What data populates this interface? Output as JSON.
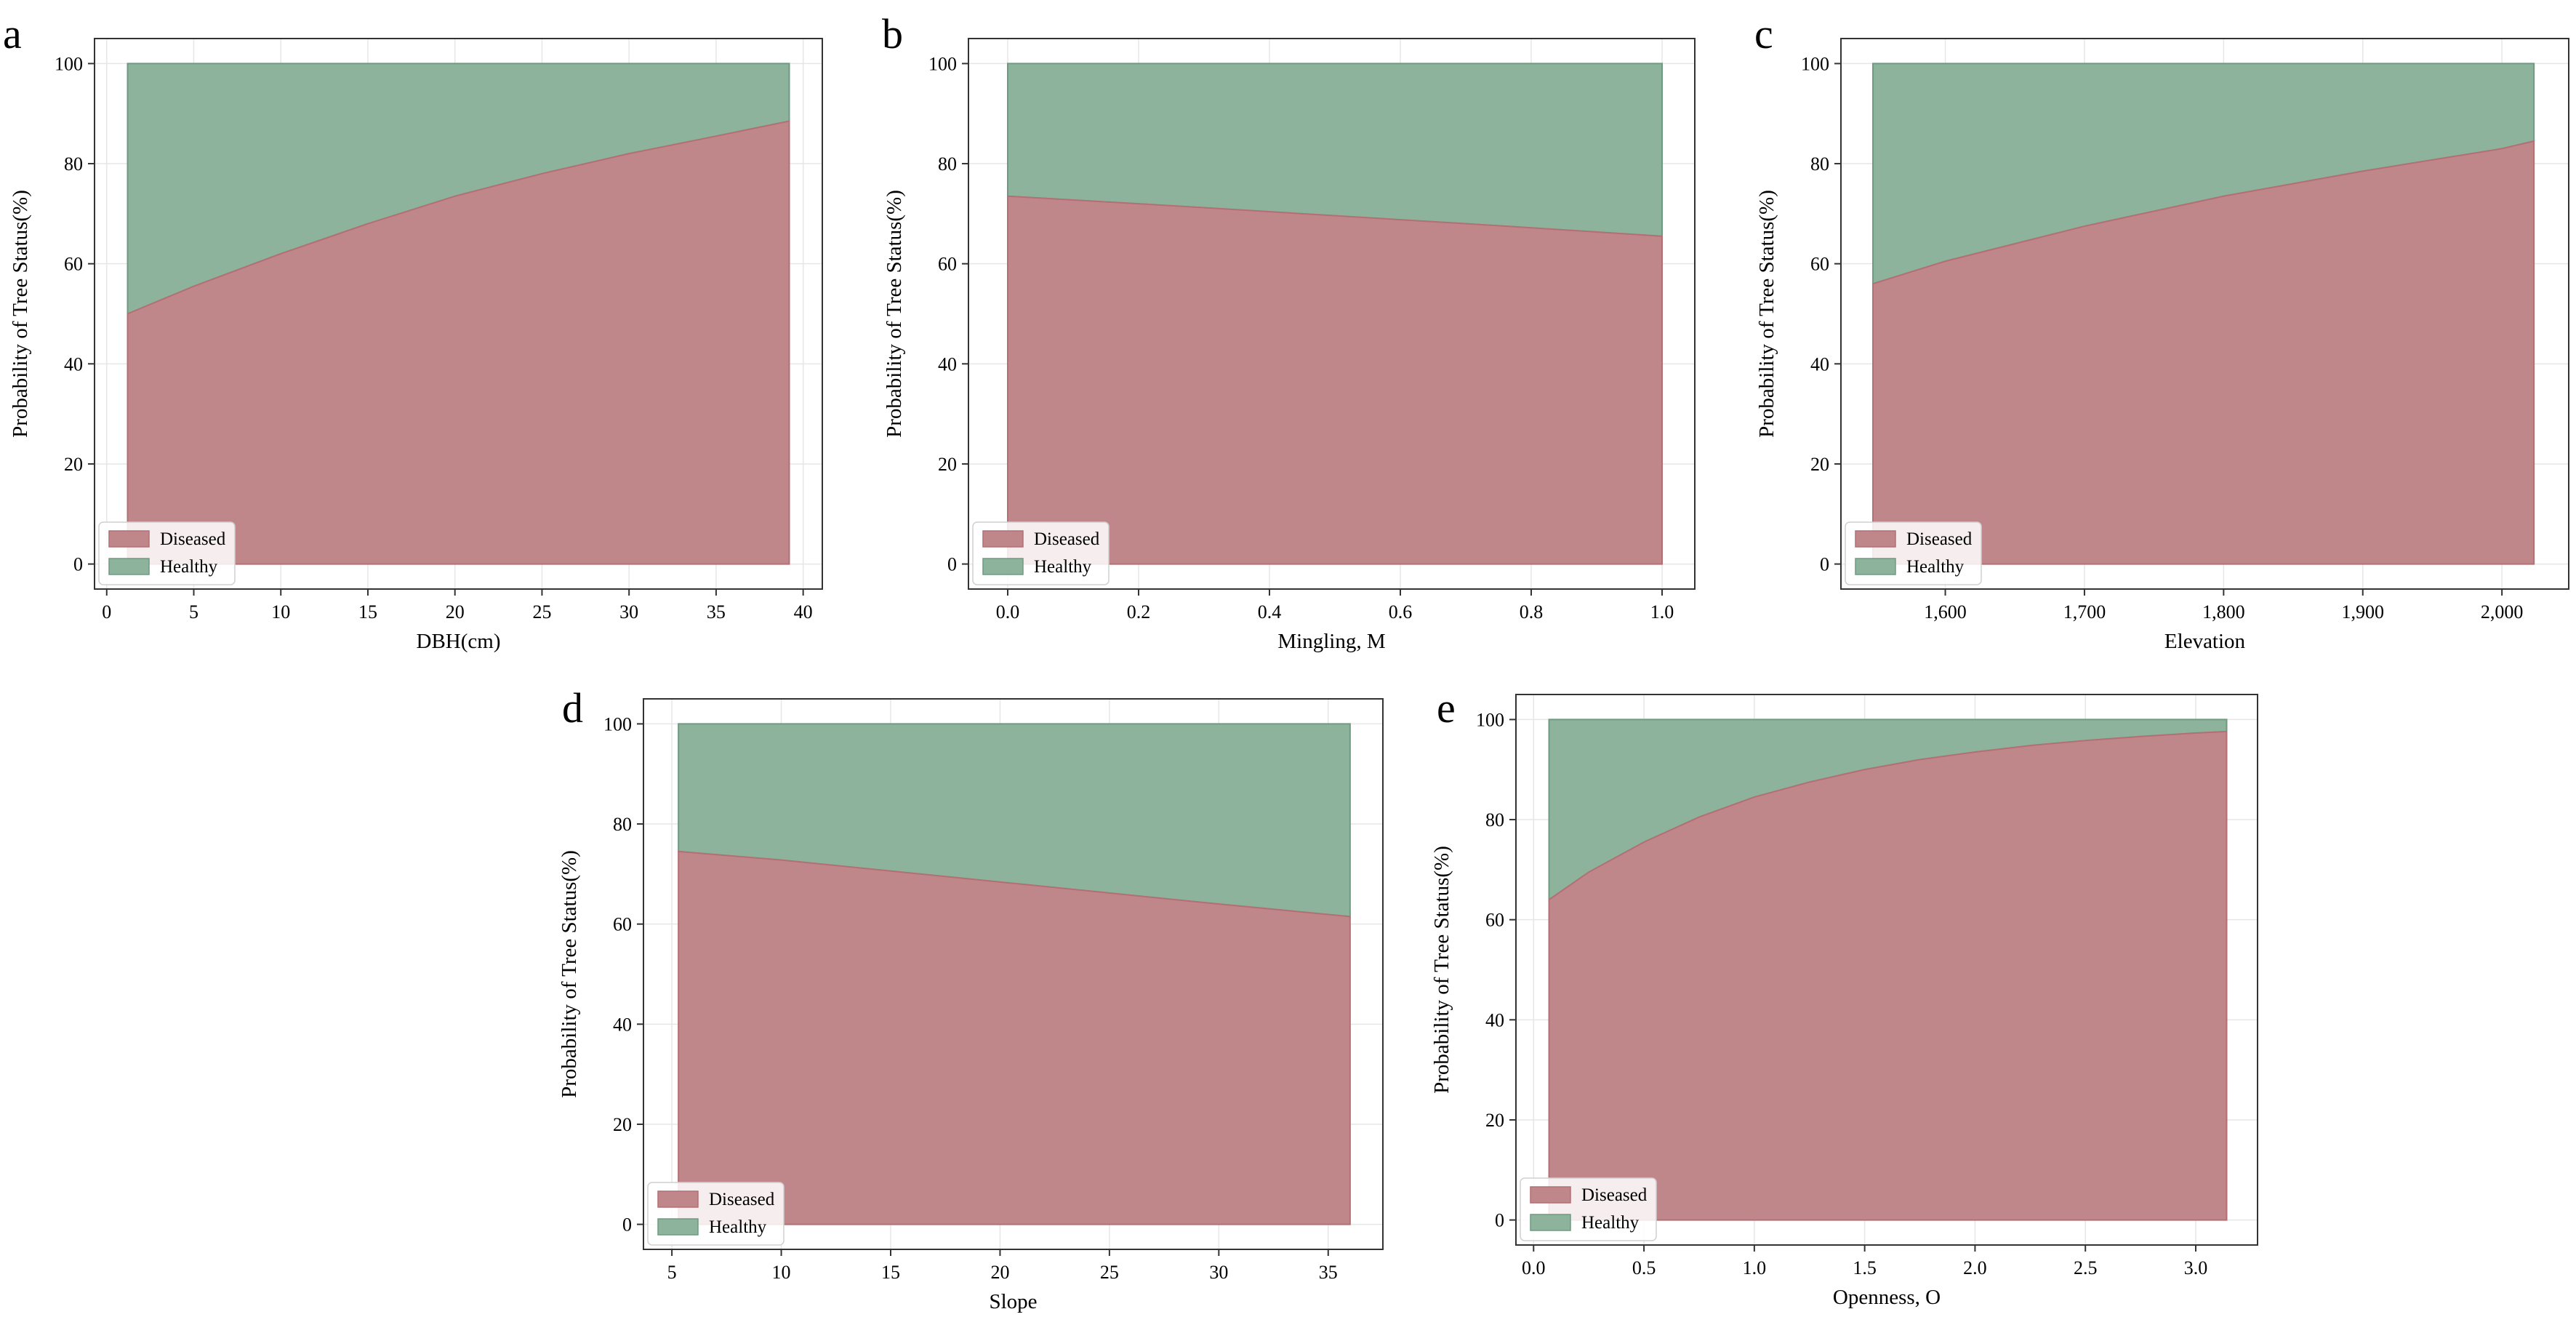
{
  "colors": {
    "diseased": "#c0878b",
    "diseased_edge": "#b46f74",
    "healthy": "#8eb39c",
    "healthy_edge": "#6e9a80",
    "grid": "#e6e6e6",
    "axis": "#333333"
  },
  "chart_data": [
    {
      "panel": "a",
      "type": "area",
      "title": "",
      "xlabel": "DBH(cm)",
      "ylabel": "Probability of Tree Status(%)",
      "xlim": [
        -0.7,
        41.1
      ],
      "ylim": [
        -5,
        105
      ],
      "xticks": [
        0,
        5,
        10,
        15,
        20,
        25,
        30,
        35,
        40
      ],
      "xtick_labels": [
        "0",
        "5",
        "10",
        "15",
        "20",
        "25",
        "30",
        "35",
        "40"
      ],
      "yticks": [
        0,
        20,
        40,
        60,
        80,
        100
      ],
      "ytick_labels": [
        "0",
        "20",
        "40",
        "60",
        "80",
        "100"
      ],
      "legend": [
        "Diseased",
        "Healthy"
      ],
      "legend_position": "lower-left",
      "series": [
        {
          "name": "Diseased",
          "x": [
            1.2,
            5,
            10,
            15,
            20,
            25,
            30,
            35,
            39.2
          ],
          "values": [
            50,
            55.5,
            62,
            68,
            73.5,
            78,
            82,
            85.5,
            88.5
          ]
        },
        {
          "name": "Healthy",
          "x": [
            1.2,
            5,
            10,
            15,
            20,
            25,
            30,
            35,
            39.2
          ],
          "values": [
            50,
            44.5,
            38,
            32,
            26.5,
            22,
            18,
            14.5,
            11.5
          ]
        }
      ]
    },
    {
      "panel": "b",
      "type": "area",
      "title": "",
      "xlabel": "Mingling, M",
      "ylabel": "Probability of Tree Status(%)",
      "xlim": [
        -0.06,
        1.05
      ],
      "ylim": [
        -5,
        105
      ],
      "xticks": [
        0,
        0.2,
        0.4,
        0.6,
        0.8,
        1.0
      ],
      "xtick_labels": [
        "0.0",
        "0.2",
        "0.4",
        "0.6",
        "0.8",
        "1.0"
      ],
      "yticks": [
        0,
        20,
        40,
        60,
        80,
        100
      ],
      "ytick_labels": [
        "0",
        "20",
        "40",
        "60",
        "80",
        "100"
      ],
      "legend": [
        "Diseased",
        "Healthy"
      ],
      "legend_position": "lower-left",
      "series": [
        {
          "name": "Diseased",
          "x": [
            0,
            0.25,
            0.5,
            0.75,
            1.0
          ],
          "values": [
            73.5,
            71.6,
            69.6,
            67.6,
            65.5
          ]
        },
        {
          "name": "Healthy",
          "x": [
            0,
            0.25,
            0.5,
            0.75,
            1.0
          ],
          "values": [
            26.5,
            28.4,
            30.4,
            32.4,
            34.5
          ]
        }
      ]
    },
    {
      "panel": "c",
      "type": "area",
      "title": "",
      "xlabel": "Elevation",
      "ylabel": "Probability of Tree Status(%)",
      "xlim": [
        1525,
        2048
      ],
      "ylim": [
        -5,
        105
      ],
      "xticks": [
        1600,
        1700,
        1800,
        1900,
        2000
      ],
      "xtick_labels": [
        "1,600",
        "1,700",
        "1,800",
        "1,900",
        "2,000"
      ],
      "yticks": [
        0,
        20,
        40,
        60,
        80,
        100
      ],
      "ytick_labels": [
        "0",
        "20",
        "40",
        "60",
        "80",
        "100"
      ],
      "legend": [
        "Diseased",
        "Healthy"
      ],
      "legend_position": "lower-left",
      "series": [
        {
          "name": "Diseased",
          "x": [
            1548,
            1600,
            1700,
            1800,
            1900,
            2000,
            2023
          ],
          "values": [
            56,
            60.5,
            67.5,
            73.5,
            78.5,
            83,
            84.5
          ]
        },
        {
          "name": "Healthy",
          "x": [
            1548,
            1600,
            1700,
            1800,
            1900,
            2000,
            2023
          ],
          "values": [
            44,
            39.5,
            32.5,
            26.5,
            21.5,
            17,
            15.5
          ]
        }
      ]
    },
    {
      "panel": "d",
      "type": "area",
      "title": "",
      "xlabel": "Slope",
      "ylabel": "Probability of Tree Status(%)",
      "xlim": [
        3.7,
        37.5
      ],
      "ylim": [
        -5,
        105
      ],
      "xticks": [
        5,
        10,
        15,
        20,
        25,
        30,
        35
      ],
      "xtick_labels": [
        "5",
        "10",
        "15",
        "20",
        "25",
        "30",
        "35"
      ],
      "yticks": [
        0,
        20,
        40,
        60,
        80,
        100
      ],
      "ytick_labels": [
        "0",
        "20",
        "40",
        "60",
        "80",
        "100"
      ],
      "legend": [
        "Diseased",
        "Healthy"
      ],
      "legend_position": "lower-left",
      "series": [
        {
          "name": "Diseased",
          "x": [
            5.3,
            10,
            15,
            20,
            25,
            30,
            36
          ],
          "values": [
            74.5,
            72.8,
            70.6,
            68.4,
            66.2,
            64,
            61.5
          ]
        },
        {
          "name": "Healthy",
          "x": [
            5.3,
            10,
            15,
            20,
            25,
            30,
            36
          ],
          "values": [
            25.5,
            27.2,
            29.4,
            31.6,
            33.8,
            36,
            38.5
          ]
        }
      ]
    },
    {
      "panel": "e",
      "type": "area",
      "title": "",
      "xlabel": "Openness, O",
      "ylabel": "Probability of Tree Status(%)",
      "xlim": [
        -0.08,
        3.28
      ],
      "ylim": [
        -5,
        105
      ],
      "xticks": [
        0,
        0.5,
        1.0,
        1.5,
        2.0,
        2.5,
        3.0
      ],
      "xtick_labels": [
        "0.0",
        "0.5",
        "1.0",
        "1.5",
        "2.0",
        "2.5",
        "3.0"
      ],
      "yticks": [
        0,
        20,
        40,
        60,
        80,
        100
      ],
      "ytick_labels": [
        "0",
        "20",
        "40",
        "60",
        "80",
        "100"
      ],
      "legend": [
        "Diseased",
        "Healthy"
      ],
      "legend_position": "lower-left",
      "series": [
        {
          "name": "Diseased",
          "x": [
            0.07,
            0.25,
            0.5,
            0.75,
            1.0,
            1.25,
            1.5,
            1.75,
            2.0,
            2.25,
            2.5,
            2.75,
            3.0,
            3.14
          ],
          "values": [
            64,
            69.5,
            75.5,
            80.5,
            84.5,
            87.5,
            90,
            92,
            93.5,
            94.8,
            95.8,
            96.6,
            97.3,
            97.6
          ]
        },
        {
          "name": "Healthy",
          "x": [
            0.07,
            0.25,
            0.5,
            0.75,
            1.0,
            1.25,
            1.5,
            1.75,
            2.0,
            2.25,
            2.5,
            2.75,
            3.0,
            3.14
          ],
          "values": [
            36,
            30.5,
            24.5,
            19.5,
            15.5,
            12.5,
            10,
            8,
            6.5,
            5.2,
            4.2,
            3.4,
            2.7,
            2.4
          ]
        }
      ]
    }
  ]
}
